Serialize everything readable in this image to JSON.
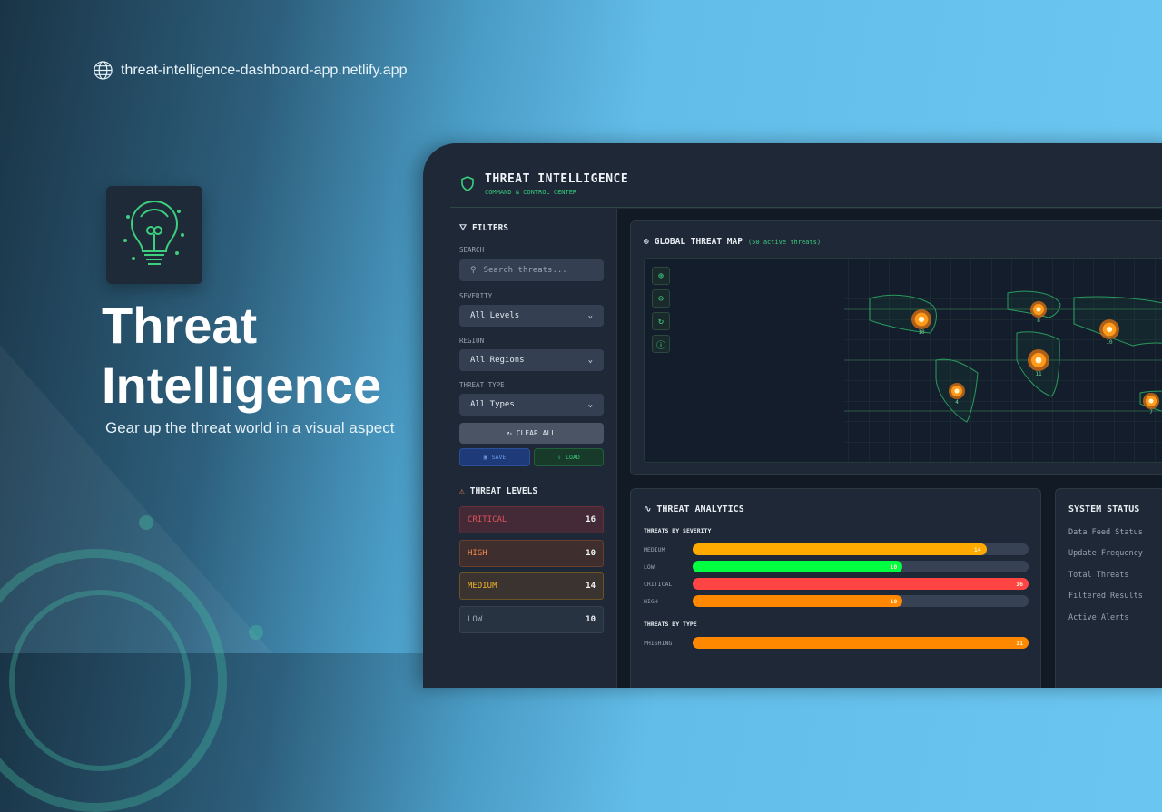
{
  "promo": {
    "url": "threat-intelligence-dashboard-app.netlify.app",
    "title_line1": "Threat",
    "title_line2": "Intelligence",
    "tagline": "Gear up the threat world in a visual aspect"
  },
  "header": {
    "title": "THREAT INTELLIGENCE",
    "subtitle": "COMMAND & CONTROL CENTER"
  },
  "filters": {
    "heading": "FILTERS",
    "search_label": "SEARCH",
    "search_placeholder": "Search threats...",
    "severity_label": "SEVERITY",
    "severity_value": "All Levels",
    "region_label": "REGION",
    "region_value": "All Regions",
    "type_label": "THREAT TYPE",
    "type_value": "All Types",
    "clear_label": "CLEAR ALL",
    "save_label": "SAVE",
    "load_label": "LOAD"
  },
  "threat_levels": {
    "heading": "THREAT LEVELS",
    "items": [
      {
        "label": "CRITICAL",
        "count": "16",
        "color": "#e0525a"
      },
      {
        "label": "HIGH",
        "count": "10",
        "color": "#f0884a"
      },
      {
        "label": "MEDIUM",
        "count": "14",
        "color": "#f0b52a"
      },
      {
        "label": "LOW",
        "count": "10",
        "color": "#9aa4b2"
      }
    ]
  },
  "map": {
    "heading": "GLOBAL THREAT MAP",
    "active": "(50 active threats)",
    "markers": [
      {
        "label": "10"
      },
      {
        "label": "8"
      },
      {
        "label": "10"
      },
      {
        "label": "11"
      },
      {
        "label": "4"
      },
      {
        "label": "7"
      }
    ]
  },
  "analytics": {
    "heading": "THREAT ANALYTICS",
    "severity_heading": "THREATS BY SEVERITY",
    "severity": [
      {
        "label": "MEDIUM",
        "value": 14,
        "color": "#ffaa00"
      },
      {
        "label": "LOW",
        "value": 10,
        "color": "#00ff41"
      },
      {
        "label": "CRITICAL",
        "value": 16,
        "color": "#ff4444"
      },
      {
        "label": "HIGH",
        "value": 10,
        "color": "#ff8800"
      }
    ],
    "severity_max": 16,
    "type_heading": "THREATS BY TYPE",
    "types": [
      {
        "label": "PHISHING",
        "value": 11,
        "color": "#ff8800"
      }
    ],
    "type_max": 11
  },
  "system_status": {
    "heading": "SYSTEM STATUS",
    "items": [
      "Data Feed Status",
      "Update Frequency",
      "Total Threats",
      "Filtered Results",
      "Active Alerts"
    ]
  }
}
